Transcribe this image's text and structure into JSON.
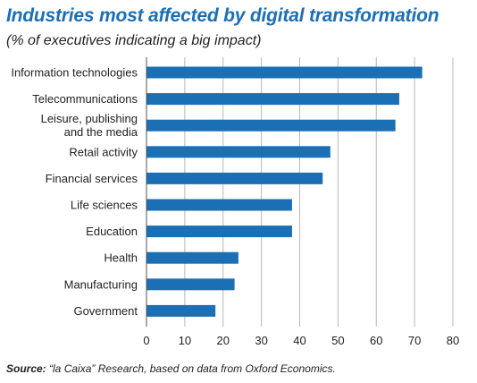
{
  "chart_data": {
    "type": "bar",
    "orientation": "horizontal",
    "title": "Industries most affected by digital transformation",
    "subtitle": "(% of executives indicating a big impact)",
    "categories": [
      [
        "Information technologies"
      ],
      [
        "Telecommunications"
      ],
      [
        "Leisure, publishing",
        "and the media"
      ],
      [
        "Retail activity"
      ],
      [
        "Financial services"
      ],
      [
        "Life sciences"
      ],
      [
        "Education"
      ],
      [
        "Health"
      ],
      [
        "Manufacturing"
      ],
      [
        "Government"
      ]
    ],
    "values": [
      72,
      66,
      65,
      48,
      46,
      38,
      38,
      24,
      23,
      18
    ],
    "xlim": [
      0,
      80
    ],
    "xticks": [
      0,
      10,
      20,
      30,
      40,
      50,
      60,
      70,
      80
    ],
    "grid": "vertical",
    "bar_color": "#1b6fb5",
    "grid_color": "#b8b8b8",
    "source_label": "Source:",
    "source_text": " “la Caixa” Research, based on data from Oxford Economics."
  }
}
